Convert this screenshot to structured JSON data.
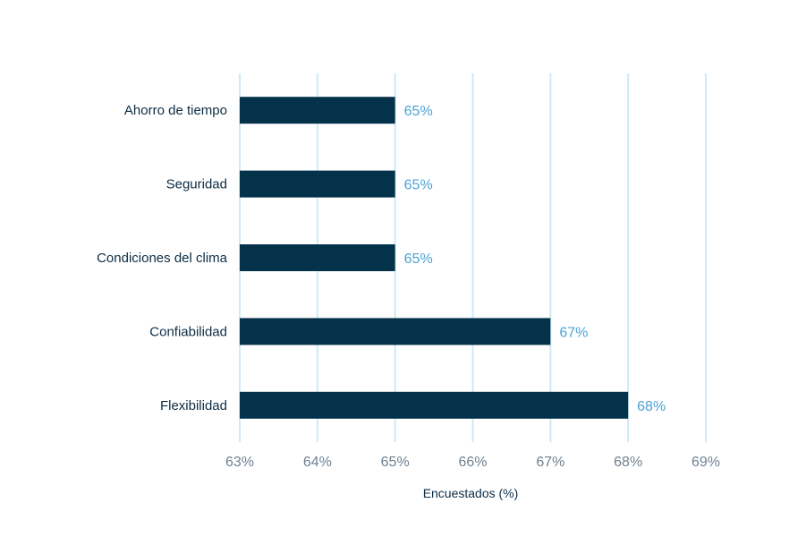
{
  "chart_data": {
    "type": "bar",
    "orientation": "horizontal",
    "categories": [
      "Ahorro de tiempo",
      "Seguridad",
      "Condiciones del clima",
      "Confiabilidad",
      "Flexibilidad"
    ],
    "values": [
      65,
      65,
      65,
      67,
      68
    ],
    "data_labels": [
      "65%",
      "65%",
      "65%",
      "67%",
      "68%"
    ],
    "xlabel": "Encuestados (%)",
    "xlim": [
      63,
      69
    ],
    "xticks": [
      63,
      64,
      65,
      66,
      67,
      68,
      69
    ],
    "xtick_labels": [
      "63%",
      "64%",
      "65%",
      "66%",
      "67%",
      "68%",
      "69%"
    ],
    "grid": "vertical",
    "colors": {
      "bar": "#04324b",
      "grid": "#cdeaf6",
      "data_label": "#4ca3d6",
      "tick_label": "#6f8192",
      "text": "#0d2d45"
    }
  }
}
